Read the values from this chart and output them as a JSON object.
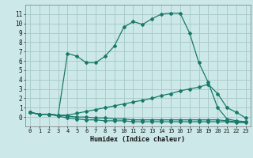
{
  "title": "",
  "xlabel": "Humidex (Indice chaleur)",
  "background_color": "#cce8e8",
  "grid_color": "#aacccc",
  "line_color": "#1a7a6a",
  "xlim": [
    -0.5,
    23.5
  ],
  "ylim": [
    -1.0,
    12.0
  ],
  "xticks": [
    0,
    1,
    2,
    3,
    4,
    5,
    6,
    7,
    8,
    9,
    10,
    11,
    12,
    13,
    14,
    15,
    16,
    17,
    18,
    19,
    20,
    21,
    22,
    23
  ],
  "yticks": [
    0,
    1,
    2,
    3,
    4,
    5,
    6,
    7,
    8,
    9,
    10,
    11
  ],
  "series": [
    {
      "x": [
        0,
        1,
        2,
        3,
        4,
        5,
        6,
        7,
        8,
        9,
        10,
        11,
        12,
        13,
        14,
        15,
        16,
        17,
        18,
        19,
        20,
        21,
        22,
        23
      ],
      "y": [
        0.5,
        0.3,
        0.3,
        0.2,
        6.8,
        6.5,
        5.8,
        5.8,
        6.5,
        7.6,
        9.6,
        10.2,
        9.9,
        10.5,
        11.0,
        11.1,
        11.1,
        9.0,
        5.8,
        3.7,
        1.0,
        -0.2,
        -0.4,
        -0.5
      ]
    },
    {
      "x": [
        0,
        1,
        2,
        3,
        4,
        5,
        6,
        7,
        8,
        9,
        10,
        11,
        12,
        13,
        14,
        15,
        16,
        17,
        18,
        19,
        20,
        21,
        22,
        23
      ],
      "y": [
        0.5,
        0.3,
        0.3,
        0.2,
        0.2,
        0.4,
        0.6,
        0.8,
        1.0,
        1.2,
        1.4,
        1.6,
        1.8,
        2.0,
        2.3,
        2.5,
        2.8,
        3.0,
        3.2,
        3.5,
        2.5,
        1.0,
        0.5,
        -0.1
      ]
    },
    {
      "x": [
        0,
        1,
        2,
        3,
        4,
        5,
        6,
        7,
        8,
        9,
        10,
        11,
        12,
        13,
        14,
        15,
        16,
        17,
        18,
        19,
        20,
        21,
        22,
        23
      ],
      "y": [
        0.5,
        0.3,
        0.3,
        0.2,
        0.1,
        0.0,
        0.0,
        -0.1,
        -0.1,
        -0.2,
        -0.2,
        -0.3,
        -0.3,
        -0.3,
        -0.3,
        -0.3,
        -0.3,
        -0.3,
        -0.3,
        -0.3,
        -0.3,
        -0.4,
        -0.5,
        -0.5
      ]
    },
    {
      "x": [
        0,
        1,
        2,
        3,
        4,
        5,
        6,
        7,
        8,
        9,
        10,
        11,
        12,
        13,
        14,
        15,
        16,
        17,
        18,
        19,
        20,
        21,
        22,
        23
      ],
      "y": [
        0.5,
        0.3,
        0.3,
        0.1,
        -0.1,
        -0.2,
        -0.3,
        -0.3,
        -0.4,
        -0.4,
        -0.4,
        -0.5,
        -0.5,
        -0.5,
        -0.5,
        -0.5,
        -0.5,
        -0.5,
        -0.5,
        -0.5,
        -0.5,
        -0.5,
        -0.6,
        -0.6
      ]
    }
  ]
}
